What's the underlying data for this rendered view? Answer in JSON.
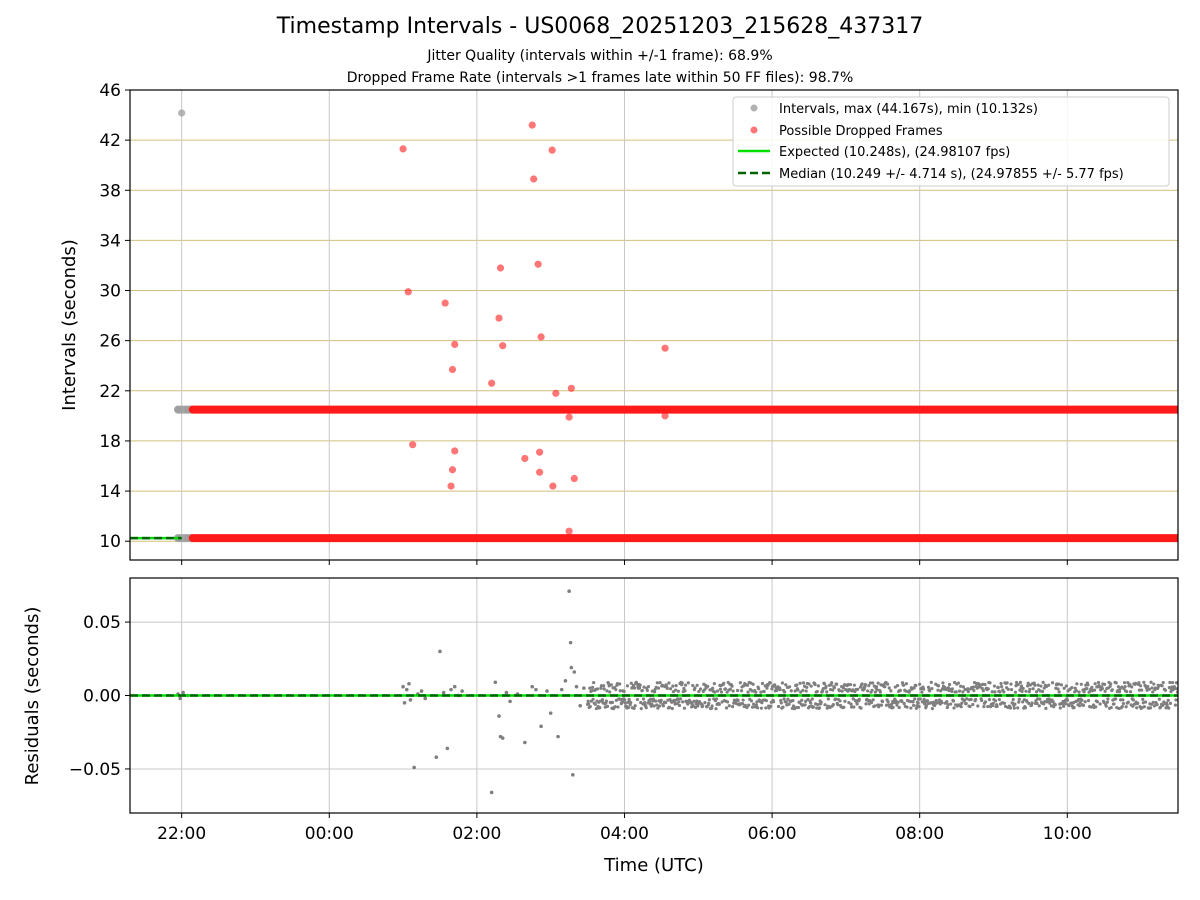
{
  "chart_data": [
    {
      "type": "scatter",
      "title": "Timestamp Intervals - US0068_20251203_215628_437317",
      "subtitle_lines": [
        "Jitter Quality (intervals within +/-1 frame): 68.9%",
        "Dropped Frame Rate (intervals >1 frames late within 50 FF files): 98.7%"
      ],
      "xlabel": "",
      "ylabel": "Intervals (seconds)",
      "xlim_hours": [
        -2.7,
        11.5
      ],
      "ylim": [
        8.5,
        46
      ],
      "yticks": [
        10,
        14,
        18,
        22,
        26,
        30,
        34,
        38,
        42,
        46
      ],
      "ytick_labels": [
        "10",
        "14",
        "18",
        "22",
        "26",
        "30",
        "34",
        "38",
        "42",
        "46"
      ],
      "hgrid_color": "#d2bf7c",
      "vgrid": true,
      "legend_position": "upper-right",
      "legend": [
        "Intervals, max (44.167s), min (10.132s)",
        "Possible Dropped Frames",
        "Expected (10.248s), (24.98107 fps)",
        "Median (10.249 +/- 4.714 s), (24.97855 +/- 5.77 fps)"
      ],
      "series": [
        {
          "name": "Intervals, max (44.167s), min (10.132s)",
          "color": "#9e9e9e",
          "bands": [
            {
              "y": 20.5,
              "x_from": -2.05,
              "x_to": -1.85
            },
            {
              "y": 10.25,
              "x_from": -2.05,
              "x_to": -1.85
            }
          ],
          "points": [
            [
              -2.0,
              44.167
            ]
          ]
        },
        {
          "name": "Possible Dropped Frames",
          "color": "#ff1a1a",
          "bands": [
            {
              "y": 20.5,
              "x_from": -1.85,
              "x_to": 11.5
            },
            {
              "y": 10.25,
              "x_from": -1.85,
              "x_to": 11.5
            }
          ],
          "points": [
            [
              1.0,
              41.3
            ],
            [
              1.07,
              29.9
            ],
            [
              1.13,
              17.7
            ],
            [
              1.57,
              29.0
            ],
            [
              1.67,
              23.7
            ],
            [
              1.7,
              25.7
            ],
            [
              1.67,
              15.7
            ],
            [
              1.65,
              14.4
            ],
            [
              1.7,
              17.2
            ],
            [
              2.2,
              22.6
            ],
            [
              2.3,
              27.8
            ],
            [
              2.32,
              31.8
            ],
            [
              2.35,
              25.6
            ],
            [
              2.65,
              16.6
            ],
            [
              2.75,
              43.2
            ],
            [
              2.77,
              38.9
            ],
            [
              2.83,
              32.1
            ],
            [
              2.87,
              26.3
            ],
            [
              2.85,
              17.1
            ],
            [
              2.85,
              15.5
            ],
            [
              3.02,
              41.2
            ],
            [
              3.03,
              14.4
            ],
            [
              3.07,
              21.8
            ],
            [
              3.25,
              19.9
            ],
            [
              3.28,
              22.2
            ],
            [
              3.32,
              15.0
            ],
            [
              3.25,
              10.8
            ],
            [
              4.55,
              25.4
            ],
            [
              4.55,
              20.0
            ]
          ]
        },
        {
          "name": "Expected (10.248s), (24.98107 fps)",
          "color": "#00e000",
          "line_y": 10.248,
          "x_from": -2.7,
          "x_to": -2.0
        },
        {
          "name": "Median (10.249 +/- 4.714 s), (24.97855 +/- 5.77 fps)",
          "color": "#006400",
          "line_y": 10.249,
          "x_from": -2.7,
          "x_to": -2.0,
          "dashed": true
        }
      ]
    },
    {
      "type": "scatter",
      "xlabel": "Time (UTC)",
      "ylabel": "Residuals (seconds)",
      "xlim_hours": [
        -2.7,
        11.5
      ],
      "ylim": [
        -0.08,
        0.08
      ],
      "yticks": [
        -0.05,
        0.0,
        0.05
      ],
      "ytick_labels": [
        "−0.05",
        "0.00",
        "0.05"
      ],
      "xtick_hours": [
        -2,
        0,
        2,
        4,
        6,
        8,
        10
      ],
      "xtick_labels": [
        "22:00",
        "00:00",
        "02:00",
        "04:00",
        "06:00",
        "08:00",
        "10:00"
      ],
      "grid": true,
      "series": [
        {
          "name": "",
          "color": "#7f7f7f",
          "dense_band": {
            "x_from": 3.5,
            "x_to": 11.5,
            "amplitude": 0.009
          },
          "points": [
            [
              -2.05,
              0.001
            ],
            [
              -2.02,
              -0.002
            ],
            [
              -1.98,
              0.002
            ],
            [
              -1.92,
              0.0
            ],
            [
              1.0,
              0.006
            ],
            [
              1.02,
              -0.005
            ],
            [
              1.05,
              0.004
            ],
            [
              1.08,
              0.008
            ],
            [
              1.1,
              -0.003
            ],
            [
              1.15,
              -0.049
            ],
            [
              1.2,
              0.001
            ],
            [
              1.25,
              0.003
            ],
            [
              1.3,
              -0.002
            ],
            [
              1.45,
              -0.042
            ],
            [
              1.5,
              0.03
            ],
            [
              1.55,
              0.002
            ],
            [
              1.6,
              -0.036
            ],
            [
              1.65,
              0.004
            ],
            [
              1.7,
              0.006
            ],
            [
              1.75,
              0.0
            ],
            [
              1.8,
              0.003
            ],
            [
              2.2,
              -0.066
            ],
            [
              2.25,
              0.009
            ],
            [
              2.3,
              -0.014
            ],
            [
              2.32,
              -0.028
            ],
            [
              2.35,
              -0.029
            ],
            [
              2.4,
              0.002
            ],
            [
              2.45,
              -0.004
            ],
            [
              2.55,
              0.001
            ],
            [
              2.65,
              -0.032
            ],
            [
              2.75,
              0.006
            ],
            [
              2.8,
              0.004
            ],
            [
              2.87,
              -0.021
            ],
            [
              2.95,
              0.003
            ],
            [
              3.0,
              -0.012
            ],
            [
              3.1,
              -0.028
            ],
            [
              3.15,
              0.004
            ],
            [
              3.2,
              0.01
            ],
            [
              3.25,
              0.071
            ],
            [
              3.27,
              0.036
            ],
            [
              3.28,
              0.019
            ],
            [
              3.3,
              -0.054
            ],
            [
              3.32,
              0.016
            ],
            [
              3.35,
              0.006
            ],
            [
              3.4,
              -0.007
            ],
            [
              3.45,
              0.005
            ]
          ]
        },
        {
          "name": "",
          "color": "#00e000",
          "line_y": 0.0,
          "x_from": -2.7,
          "x_to": 11.5
        },
        {
          "name": "",
          "color": "#006400",
          "line_y": 0.0,
          "x_from": -2.7,
          "x_to": 11.5,
          "dashed": true
        }
      ]
    }
  ]
}
